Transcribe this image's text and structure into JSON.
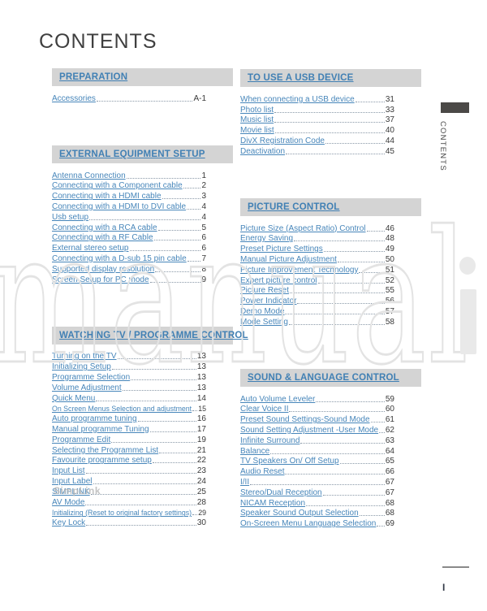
{
  "page": {
    "title": "CONTENTS",
    "watermark_outline": "manual",
    "watermark_solid": "i",
    "side_tab_label": "CONTENTS",
    "footer_page_mark": "I"
  },
  "colors": {
    "link_blue": "#4786ba",
    "header_blue": "#4180b4",
    "header_bar_gray": "#d4d4d4",
    "page_number_dark": "#383838",
    "side_tab_dark": "#4b4947"
  },
  "columns": {
    "left": [
      {
        "header": "PREPARATION",
        "entries": [
          {
            "label": "Accessories",
            "page": "A-1"
          }
        ]
      },
      {
        "header": "EXTERNAL EQUIPMENT SETUP",
        "entries": [
          {
            "label": "Antenna Connection",
            "page": "1"
          },
          {
            "label": "Connecting with a Component cable",
            "page": "2"
          },
          {
            "label": "Connecting with a HDMI cable",
            "page": "3"
          },
          {
            "label": "Connecting with a HDMI to DVI cable",
            "page": "4"
          },
          {
            "label": "Usb setup",
            "page": "4"
          },
          {
            "label": "Connecting with a RCA cable",
            "page": "5"
          },
          {
            "label": "Connecting with a RF Cable",
            "page": "6"
          },
          {
            "label": "External stereo setup",
            "page": "6"
          },
          {
            "label": "Connecting with a D-sub 15 pin cable",
            "page": "7"
          },
          {
            "label": "Supported display resolution",
            "page": "8"
          },
          {
            "label": "Screen Setup for PC mode",
            "page": "9"
          }
        ]
      },
      {
        "header": "WATCHING TV / PROGRAMME CONTROL",
        "entries": [
          {
            "label": "Turning on the TV",
            "page": "13"
          },
          {
            "label": "Initializing Setup",
            "page": "13"
          },
          {
            "label": "Programme Selection",
            "page": "13"
          },
          {
            "label": "Volume Adjustment",
            "page": "13"
          },
          {
            "label": "Quick Menu",
            "page": "14"
          },
          {
            "label": "On Screen Menus Selection and adjustment",
            "page": "15"
          },
          {
            "label": "Auto programme tuning",
            "page": "16"
          },
          {
            "label": "Manual programme Tuning",
            "page": "17"
          },
          {
            "label": "Programme Edit",
            "page": "19"
          },
          {
            "label": "Selecting the Programme List",
            "page": "21"
          },
          {
            "label": "Favourite programme setup",
            "page": "22"
          },
          {
            "label": "Input List",
            "page": "23"
          },
          {
            "label": "Input Label",
            "page": "24"
          },
          {
            "label": "SIMPLINK",
            "page": "25",
            "overlay": "SimpLink"
          },
          {
            "label": "AV Mode",
            "page": "28"
          },
          {
            "label": "Initializing (Reset to original factory settings)",
            "page": "29"
          },
          {
            "label": "Key Lock",
            "page": "30"
          }
        ]
      }
    ],
    "right": [
      {
        "header": "TO USE A USB DEVICE",
        "entries": [
          {
            "label": "When connecting a USB device",
            "page": "31"
          },
          {
            "label": "Photo list",
            "page": "33"
          },
          {
            "label": "Music list",
            "page": "37"
          },
          {
            "label": "Movie list",
            "page": "40"
          },
          {
            "label": "DivX Registration Code",
            "page": "44"
          },
          {
            "label": "Deactivation",
            "page": "45"
          }
        ]
      },
      {
        "header": "PICTURE CONTROL",
        "entries": [
          {
            "label": "Picture Size (Aspect Ratio) Control",
            "page": "46"
          },
          {
            "label": "Energy Saving",
            "page": "48"
          },
          {
            "label": "Preset Picture Settings",
            "page": "49"
          },
          {
            "label": "Manual Picture Adjustment",
            "page": "50"
          },
          {
            "label": "Picture Improvement Technology",
            "page": "51"
          },
          {
            "label": "Expert picture control",
            "page": "52"
          },
          {
            "label": "Picture Reset",
            "page": "55"
          },
          {
            "label": "Power Indicator",
            "page": "56"
          },
          {
            "label": "Demo Mode",
            "page": "57"
          },
          {
            "label": "Mode Setting",
            "page": "58"
          }
        ]
      },
      {
        "header": "SOUND & LANGUAGE CONTROL",
        "entries": [
          {
            "label": "Auto Volume Leveler",
            "page": "59"
          },
          {
            "label": "Clear Voice II",
            "page": "60"
          },
          {
            "label": "Preset Sound Settings-Sound Mode",
            "page": "61"
          },
          {
            "label": "Sound Setting Adjustment -User Mode",
            "page": "62"
          },
          {
            "label": "Infinite Surround",
            "page": "63"
          },
          {
            "label": "Balance",
            "page": "64"
          },
          {
            "label": "TV Speakers On/ Off Setup",
            "page": "65"
          },
          {
            "label": "Audio Reset",
            "page": "66"
          },
          {
            "label": "I/II",
            "page": "67"
          },
          {
            "label": "Stereo/Dual Reception",
            "page": "67"
          },
          {
            "label": "NICAM Reception",
            "page": "68"
          },
          {
            "label": "Speaker Sound Output Selection",
            "page": "68"
          },
          {
            "label": "On-Screen Menu Language Selection",
            "page": "69"
          }
        ]
      }
    ]
  }
}
